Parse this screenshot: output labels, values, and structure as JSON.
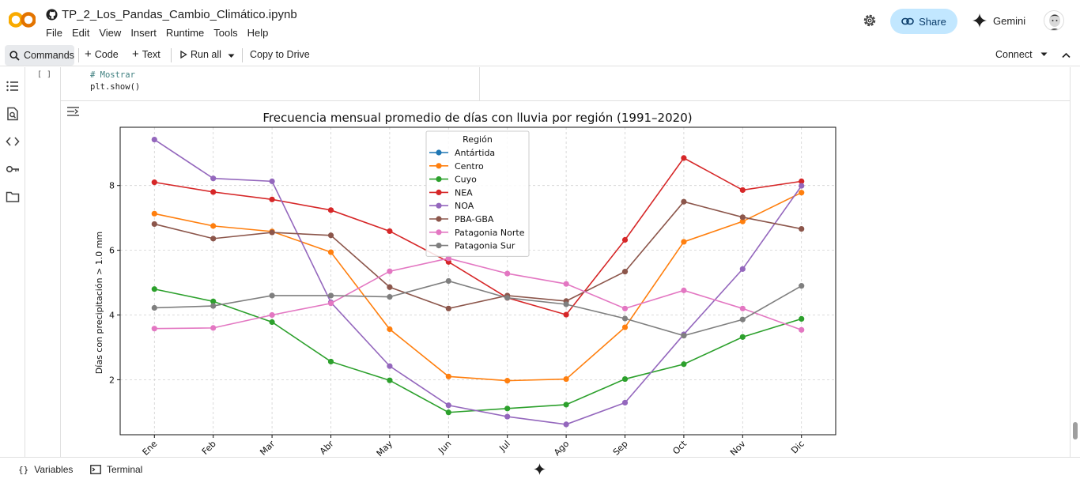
{
  "app": {
    "logo_text": "CO",
    "notebook_title": "TP_2_Los_Pandas_Cambio_Climático.ipynb",
    "menu": [
      "File",
      "Edit",
      "View",
      "Insert",
      "Runtime",
      "Tools",
      "Help"
    ],
    "share_label": "Share",
    "gemini_label": "Gemini"
  },
  "toolbar": {
    "commands_label": "Commands",
    "code_label": "Code",
    "text_label": "Text",
    "run_all_label": "Run all",
    "copy_to_drive_label": "Copy to Drive",
    "connect_label": "Connect"
  },
  "cell": {
    "exec_count": "[ ]",
    "code_lines": [
      "# Mostrar",
      "plt.show()"
    ]
  },
  "bottom": {
    "variables_label": "Variables",
    "terminal_label": "Terminal"
  },
  "colors": {
    "accent": "#c2e7ff",
    "logo_orange": "#f9ab00",
    "logo_yellow": "#e37400"
  },
  "chart_data": {
    "type": "line",
    "title": "Frecuencia mensual promedio de días con lluvia por región (1991–2020)",
    "xlabel": "",
    "ylabel": "Días con precipitación > 1.0 mm",
    "categories": [
      "Ene",
      "Feb",
      "Mar",
      "Abr",
      "May",
      "Jun",
      "Jul",
      "Ago",
      "Sep",
      "Oct",
      "Nov",
      "Dic"
    ],
    "yticks": [
      2,
      4,
      6,
      8
    ],
    "ylim": [
      0.3,
      9.8
    ],
    "grid": true,
    "legend_title": "Región",
    "legend_position": "top-center",
    "series": [
      {
        "name": "Antártida",
        "color": "#1f77b4",
        "values": [
          null,
          null,
          null,
          null,
          null,
          null,
          null,
          null,
          null,
          null,
          null,
          null
        ]
      },
      {
        "name": "Centro",
        "color": "#ff7f0e",
        "values": [
          7.13,
          6.75,
          6.58,
          5.94,
          3.56,
          2.1,
          1.97,
          2.02,
          3.62,
          6.26,
          6.89,
          7.78
        ]
      },
      {
        "name": "Cuyo",
        "color": "#2ca02c",
        "values": [
          4.8,
          4.42,
          3.78,
          2.56,
          1.98,
          0.99,
          1.11,
          1.23,
          2.02,
          2.48,
          3.32,
          3.88
        ]
      },
      {
        "name": "NEA",
        "color": "#d62728",
        "values": [
          8.1,
          7.8,
          7.57,
          7.24,
          6.59,
          5.64,
          4.53,
          4.01,
          6.32,
          8.85,
          7.86,
          8.13
        ]
      },
      {
        "name": "NOA",
        "color": "#9467bd",
        "values": [
          9.42,
          8.22,
          8.13,
          4.39,
          2.42,
          1.21,
          0.86,
          0.62,
          1.29,
          3.4,
          5.42,
          7.99
        ]
      },
      {
        "name": "PBA-GBA",
        "color": "#8c564b",
        "values": [
          6.81,
          6.36,
          6.55,
          6.46,
          4.86,
          4.2,
          4.6,
          4.43,
          5.34,
          7.5,
          7.02,
          6.66
        ]
      },
      {
        "name": "Patagonia Norte",
        "color": "#e377c2",
        "values": [
          3.58,
          3.6,
          4.0,
          4.36,
          5.35,
          5.75,
          5.28,
          4.96,
          4.2,
          4.76,
          4.2,
          3.54
        ]
      },
      {
        "name": "Patagonia Sur",
        "color": "#7f7f7f",
        "values": [
          4.22,
          4.28,
          4.6,
          4.6,
          4.56,
          5.05,
          4.53,
          4.33,
          3.89,
          3.36,
          3.86,
          4.9
        ]
      }
    ]
  }
}
